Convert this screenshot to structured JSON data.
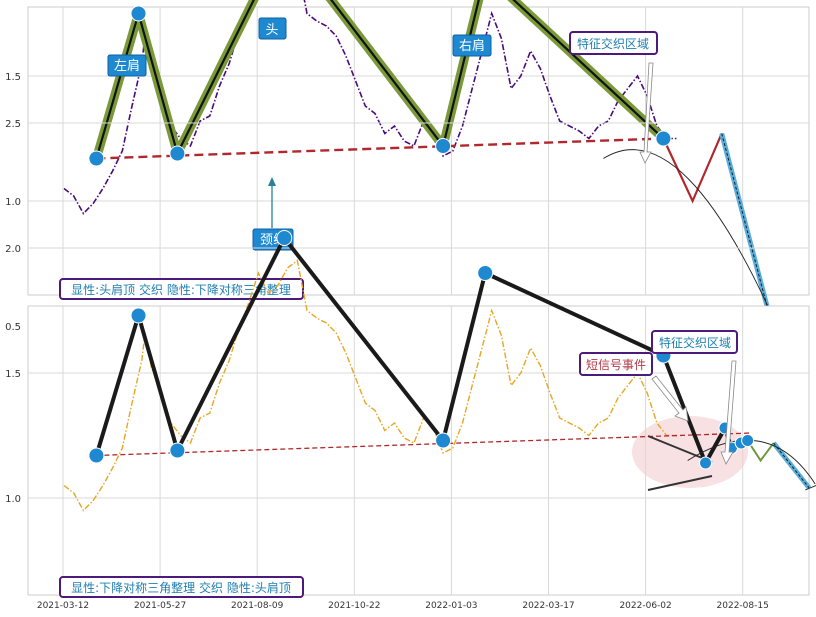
{
  "chart_data": [
    {
      "type": "line",
      "ylim": [
        0.25,
        2.55
      ],
      "yticks": [
        "0.5",
        "1.0",
        "1.5",
        "2.0",
        "2.5"
      ],
      "grid": true,
      "price_series": [
        [
          0,
          1.05
        ],
        [
          3,
          1.02
        ],
        [
          6,
          0.95
        ],
        [
          9,
          0.99
        ],
        [
          12,
          1.05
        ],
        [
          15,
          1.12
        ],
        [
          18,
          1.2
        ],
        [
          21,
          1.38
        ],
        [
          24,
          1.55
        ],
        [
          25,
          1.66
        ],
        [
          27,
          1.52
        ],
        [
          30,
          1.43
        ],
        [
          33,
          1.3
        ],
        [
          36,
          1.25
        ],
        [
          39,
          1.22
        ],
        [
          42,
          1.32
        ],
        [
          45,
          1.34
        ],
        [
          48,
          1.46
        ],
        [
          51,
          1.55
        ],
        [
          54,
          1.68
        ],
        [
          57,
          1.78
        ],
        [
          60,
          1.9
        ],
        [
          63,
          1.82
        ],
        [
          66,
          1.85
        ],
        [
          69,
          1.92
        ],
        [
          72,
          1.95
        ],
        [
          75,
          1.75
        ],
        [
          78,
          1.72
        ],
        [
          81,
          1.7
        ],
        [
          84,
          1.66
        ],
        [
          87,
          1.58
        ],
        [
          90,
          1.48
        ],
        [
          93,
          1.38
        ],
        [
          96,
          1.35
        ],
        [
          99,
          1.27
        ],
        [
          102,
          1.3
        ],
        [
          105,
          1.24
        ],
        [
          108,
          1.22
        ],
        [
          111,
          1.32
        ],
        [
          114,
          1.28
        ],
        [
          117,
          1.18
        ],
        [
          120,
          1.2
        ],
        [
          123,
          1.3
        ],
        [
          126,
          1.45
        ],
        [
          129,
          1.6
        ],
        [
          132,
          1.75
        ],
        [
          135,
          1.65
        ],
        [
          138,
          1.45
        ],
        [
          141,
          1.5
        ],
        [
          144,
          1.6
        ],
        [
          147,
          1.53
        ],
        [
          150,
          1.42
        ],
        [
          153,
          1.32
        ],
        [
          156,
          1.3
        ],
        [
          159,
          1.28
        ],
        [
          162,
          1.25
        ],
        [
          165,
          1.3
        ],
        [
          168,
          1.32
        ],
        [
          171,
          1.4
        ],
        [
          174,
          1.45
        ],
        [
          177,
          1.5
        ],
        [
          180,
          1.42
        ],
        [
          183,
          1.3
        ],
        [
          186,
          1.25
        ],
        [
          189,
          1.25
        ]
      ],
      "pattern_points": [
        [
          10,
          1.17
        ],
        [
          23,
          1.75
        ],
        [
          35,
          1.19
        ],
        [
          68,
          2.05
        ],
        [
          117,
          1.22
        ],
        [
          130,
          1.91
        ],
        [
          185,
          1.25
        ]
      ],
      "neckline": [
        [
          10,
          1.17
        ],
        [
          185,
          1.25
        ]
      ],
      "projection": [
        [
          185,
          1.25
        ],
        [
          194,
          1.0
        ],
        [
          203,
          1.27
        ],
        [
          220,
          0.43
        ]
      ],
      "labels": {
        "left_shoulder": "左肩",
        "head": "头",
        "right_shoulder": "右肩",
        "neckline": "颈线",
        "feature_zone": "特征交织区域",
        "caption": "显性:头肩顶 交织 隐性:下降对称三角整理"
      }
    },
    {
      "type": "line",
      "ylim": [
        0.25,
        2.55
      ],
      "yticks": [
        "0.5",
        "1.0",
        "1.5",
        "2.0",
        "2.5"
      ],
      "x_tick_labels": [
        "2021-03-12",
        "2021-05-27",
        "2021-08-09",
        "2021-10-22",
        "2022-01-03",
        "2022-03-17",
        "2022-06-02",
        "2022-08-15"
      ],
      "grid": true,
      "price_series": [
        [
          0,
          1.05
        ],
        [
          3,
          1.02
        ],
        [
          6,
          0.95
        ],
        [
          9,
          0.99
        ],
        [
          12,
          1.05
        ],
        [
          15,
          1.12
        ],
        [
          18,
          1.2
        ],
        [
          21,
          1.38
        ],
        [
          24,
          1.55
        ],
        [
          25,
          1.66
        ],
        [
          27,
          1.52
        ],
        [
          30,
          1.43
        ],
        [
          33,
          1.3
        ],
        [
          36,
          1.25
        ],
        [
          39,
          1.22
        ],
        [
          42,
          1.32
        ],
        [
          45,
          1.34
        ],
        [
          48,
          1.46
        ],
        [
          51,
          1.55
        ],
        [
          54,
          1.68
        ],
        [
          57,
          1.78
        ],
        [
          60,
          1.9
        ],
        [
          63,
          1.82
        ],
        [
          66,
          1.85
        ],
        [
          69,
          1.92
        ],
        [
          72,
          1.95
        ],
        [
          75,
          1.75
        ],
        [
          78,
          1.72
        ],
        [
          81,
          1.7
        ],
        [
          84,
          1.66
        ],
        [
          87,
          1.58
        ],
        [
          90,
          1.48
        ],
        [
          93,
          1.38
        ],
        [
          96,
          1.35
        ],
        [
          99,
          1.27
        ],
        [
          102,
          1.3
        ],
        [
          105,
          1.24
        ],
        [
          108,
          1.22
        ],
        [
          111,
          1.32
        ],
        [
          114,
          1.28
        ],
        [
          117,
          1.18
        ],
        [
          120,
          1.2
        ],
        [
          123,
          1.3
        ],
        [
          126,
          1.45
        ],
        [
          129,
          1.6
        ],
        [
          132,
          1.75
        ],
        [
          135,
          1.65
        ],
        [
          138,
          1.45
        ],
        [
          141,
          1.5
        ],
        [
          144,
          1.6
        ],
        [
          147,
          1.53
        ],
        [
          150,
          1.42
        ],
        [
          153,
          1.32
        ],
        [
          156,
          1.3
        ],
        [
          159,
          1.28
        ],
        [
          162,
          1.25
        ],
        [
          165,
          1.3
        ],
        [
          168,
          1.32
        ],
        [
          171,
          1.4
        ],
        [
          174,
          1.45
        ],
        [
          177,
          1.5
        ],
        [
          180,
          1.42
        ],
        [
          183,
          1.3
        ],
        [
          186,
          1.25
        ],
        [
          189,
          1.25
        ]
      ],
      "pattern_points": [
        [
          10,
          1.17
        ],
        [
          23,
          1.73
        ],
        [
          35,
          1.19
        ],
        [
          68,
          2.04
        ],
        [
          117,
          1.23
        ],
        [
          130,
          1.9
        ],
        [
          185,
          1.57
        ],
        [
          198,
          1.14
        ],
        [
          204,
          1.28
        ],
        [
          206,
          1.2
        ],
        [
          209,
          1.22
        ],
        [
          211,
          1.23
        ]
      ],
      "neckline": [
        [
          10,
          1.17
        ],
        [
          212,
          1.26
        ]
      ],
      "projection": [
        [
          211,
          1.23
        ],
        [
          215,
          1.15
        ],
        [
          219,
          1.22
        ],
        [
          230,
          1.04
        ]
      ],
      "labels": {
        "signal_event": "短信号事件",
        "feature_zone": "特征交织区域",
        "caption": "显性:下降对称三角整理 交织 隐性:头肩顶"
      }
    }
  ]
}
